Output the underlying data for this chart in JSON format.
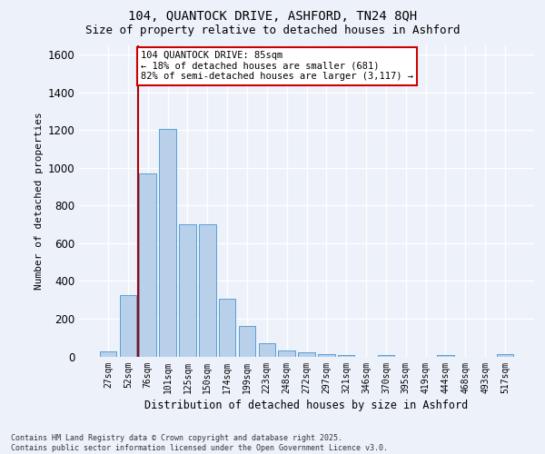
{
  "title_line1": "104, QUANTOCK DRIVE, ASHFORD, TN24 8QH",
  "title_line2": "Size of property relative to detached houses in Ashford",
  "xlabel": "Distribution of detached houses by size in Ashford",
  "ylabel": "Number of detached properties",
  "categories": [
    "27sqm",
    "52sqm",
    "76sqm",
    "101sqm",
    "125sqm",
    "150sqm",
    "174sqm",
    "199sqm",
    "223sqm",
    "248sqm",
    "272sqm",
    "297sqm",
    "321sqm",
    "346sqm",
    "370sqm",
    "395sqm",
    "419sqm",
    "444sqm",
    "468sqm",
    "493sqm",
    "517sqm"
  ],
  "values": [
    25,
    325,
    970,
    1205,
    700,
    700,
    305,
    160,
    70,
    30,
    20,
    10,
    5,
    0,
    5,
    0,
    0,
    5,
    0,
    0,
    10
  ],
  "bar_color": "#b8d0ea",
  "bar_edge_color": "#5a9fd4",
  "background_color": "#edf1fa",
  "grid_color": "#ffffff",
  "ylim": [
    0,
    1650
  ],
  "yticks": [
    0,
    200,
    400,
    600,
    800,
    1000,
    1200,
    1400,
    1600
  ],
  "vline_x": 1.5,
  "vline_color": "#aa0000",
  "annotation_line1": "104 QUANTOCK DRIVE: 85sqm",
  "annotation_line2": "← 18% of detached houses are smaller (681)",
  "annotation_line3": "82% of semi-detached houses are larger (3,117) →",
  "annotation_box_facecolor": "#ffffff",
  "annotation_box_edgecolor": "#cc0000",
  "footer_line1": "Contains HM Land Registry data © Crown copyright and database right 2025.",
  "footer_line2": "Contains public sector information licensed under the Open Government Licence v3.0."
}
